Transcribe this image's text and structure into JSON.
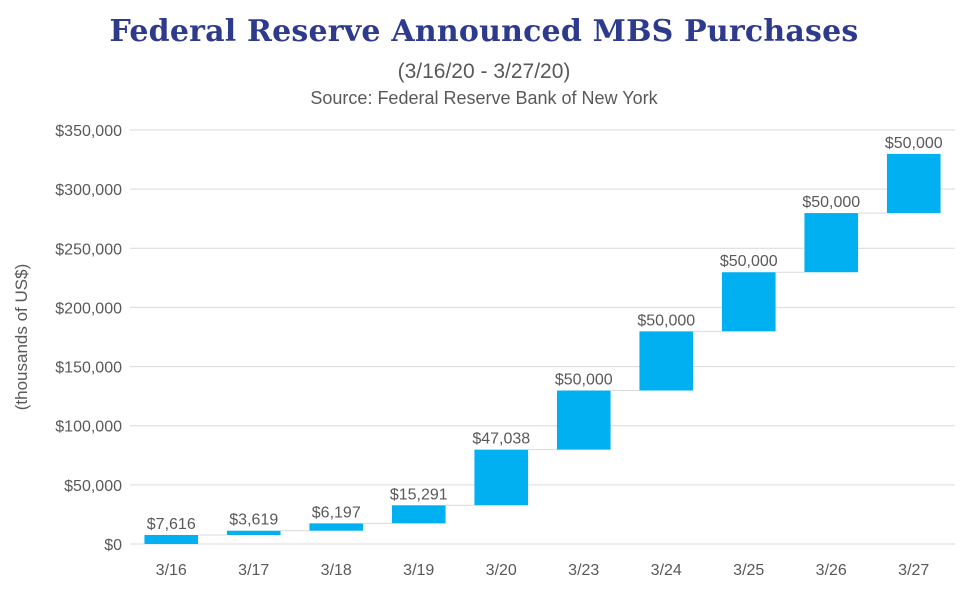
{
  "chart_data": {
    "type": "bar",
    "subtype": "waterfall",
    "title": "Federal Reserve Announced MBS Purchases",
    "subtitle": "(3/16/20 - 3/27/20)",
    "source": "Source: Federal Reserve Bank of New York",
    "xlabel": "",
    "ylabel": "(thousands of US$)",
    "ylim": [
      0,
      350000
    ],
    "yticks": [
      0,
      50000,
      100000,
      150000,
      200000,
      250000,
      300000,
      350000
    ],
    "ytick_labels": [
      "$0",
      "$50,000",
      "$100,000",
      "$150,000",
      "$200,000",
      "$250,000",
      "$300,000",
      "$350,000"
    ],
    "categories": [
      "3/16",
      "3/17",
      "3/18",
      "3/19",
      "3/20",
      "3/23",
      "3/24",
      "3/25",
      "3/26",
      "3/27"
    ],
    "values": [
      7616,
      3619,
      6197,
      15291,
      47038,
      50000,
      50000,
      50000,
      50000,
      50000
    ],
    "data_labels": [
      "$7,616",
      "$3,619",
      "$6,197",
      "$15,291",
      "$47,038",
      "$50,000",
      "$50,000",
      "$50,000",
      "$50,000",
      "$50,000"
    ],
    "grid": true,
    "legend": "none",
    "bar_color": "#00b0f0",
    "gridline_color": "#d9d9d9",
    "connector_color": "#d9d9d9",
    "title_color": "#2e3a8c",
    "text_color": "#595959"
  }
}
